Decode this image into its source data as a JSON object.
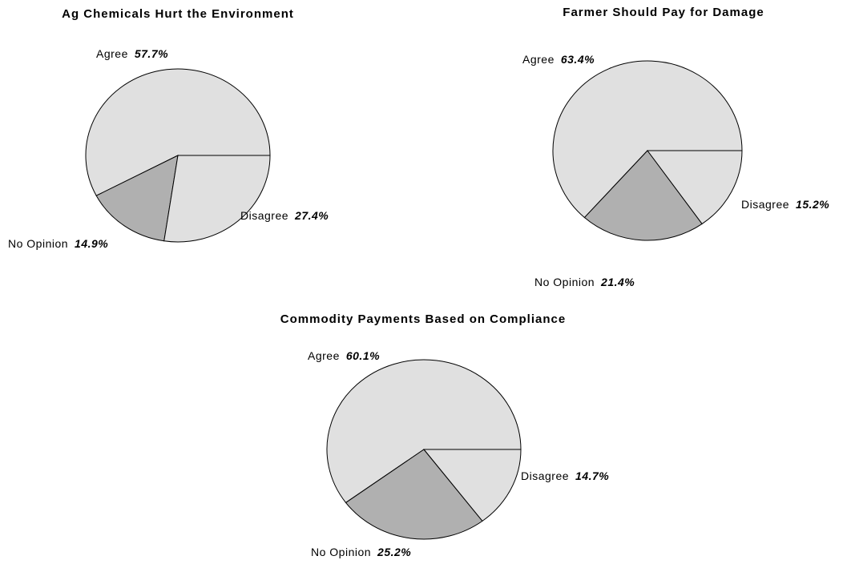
{
  "chart_data": [
    {
      "type": "pie",
      "title": "Ag Chemicals Hurt the Environment",
      "categories": [
        "Agree",
        "No Opinion",
        "Disagree"
      ],
      "values": [
        57.7,
        14.9,
        27.4
      ],
      "value_labels": [
        "57.7%",
        "14.9%",
        "27.4%"
      ],
      "colors": [
        "#e0e0e0",
        "#b0b0b0",
        "#e0e0e0"
      ]
    },
    {
      "type": "pie",
      "title": "Farmer Should Pay for Damage",
      "categories": [
        "Agree",
        "No Opinion",
        "Disagree"
      ],
      "values": [
        63.4,
        21.4,
        15.2
      ],
      "value_labels": [
        "63.4%",
        "21.4%",
        "15.2%"
      ],
      "colors": [
        "#e0e0e0",
        "#b0b0b0",
        "#e0e0e0"
      ]
    },
    {
      "type": "pie",
      "title": "Commodity Payments Based on Compliance",
      "categories": [
        "Agree",
        "No Opinion",
        "Disagree"
      ],
      "values": [
        60.1,
        25.2,
        14.7
      ],
      "value_labels": [
        "60.1%",
        "25.2%",
        "14.7%"
      ],
      "colors": [
        "#e0e0e0",
        "#b0b0b0",
        "#e0e0e0"
      ]
    }
  ]
}
